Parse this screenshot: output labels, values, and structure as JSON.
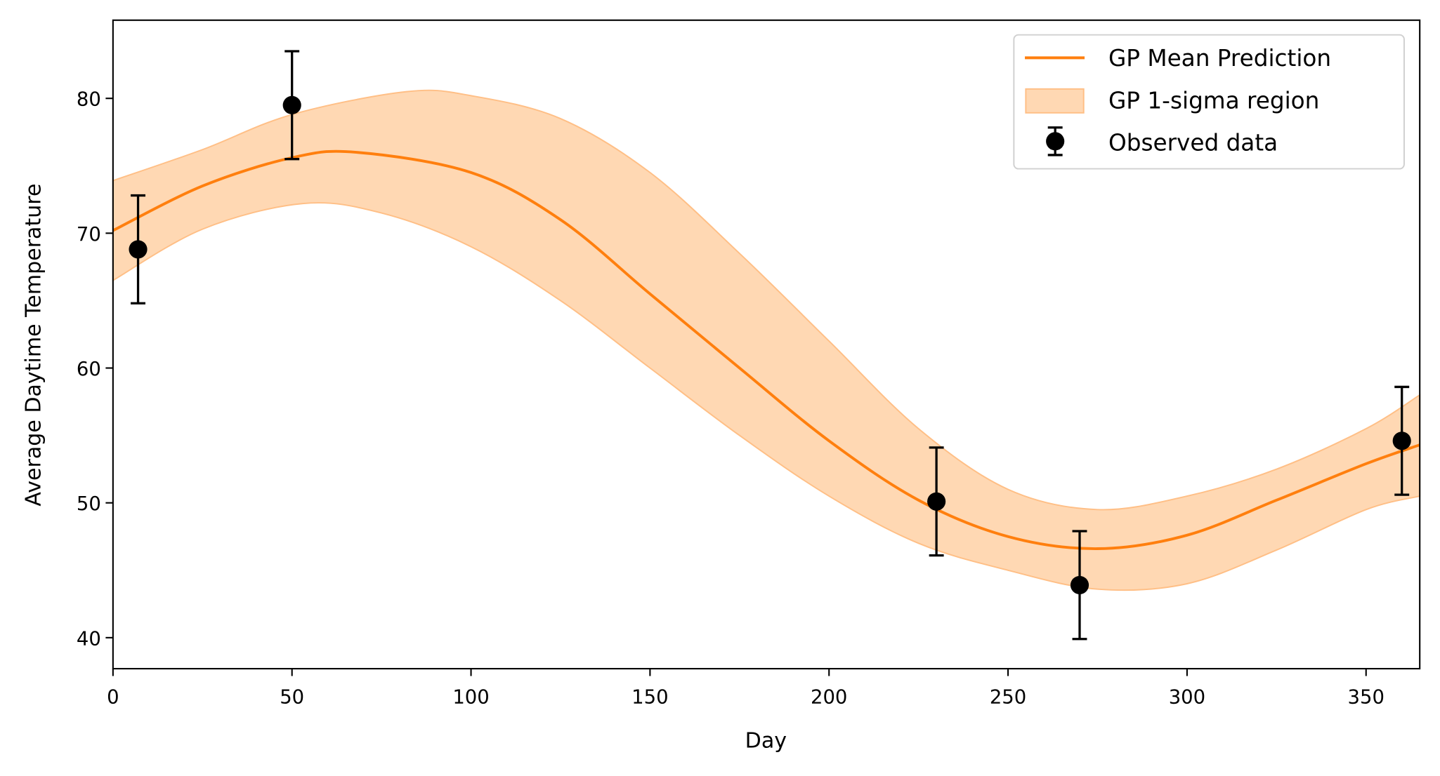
{
  "chart_data": {
    "type": "line",
    "title": "",
    "xlabel": "Day",
    "ylabel": "Average Daytime Temperature",
    "xlim": [
      0,
      365
    ],
    "ylim": [
      37.7,
      85.8
    ],
    "xticks": [
      0,
      50,
      100,
      150,
      200,
      250,
      300,
      350
    ],
    "yticks": [
      40,
      50,
      60,
      70,
      80
    ],
    "grid": false,
    "legend_position": "top-right",
    "colors": {
      "mean": "#ff7f0e",
      "band_fill": "#ffd8b3",
      "band_edge": "#ffbf86",
      "observed": "#000000"
    },
    "mean": {
      "name": "GP Mean Prediction",
      "x": [
        0,
        25,
        50,
        68,
        100,
        125,
        150,
        175,
        200,
        225,
        250,
        275,
        300,
        325,
        350,
        365
      ],
      "y": [
        70.2,
        73.5,
        75.6,
        76.0,
        74.5,
        71.0,
        65.5,
        60.0,
        54.6,
        50.2,
        47.5,
        46.6,
        47.6,
        50.2,
        52.9,
        54.3
      ]
    },
    "band": {
      "name": "GP 1-sigma region",
      "x": [
        0,
        25,
        50,
        82,
        100,
        125,
        150,
        175,
        200,
        225,
        250,
        275,
        300,
        325,
        350,
        365
      ],
      "upper": [
        73.9,
        76.2,
        78.8,
        80.5,
        80.2,
        78.5,
        74.5,
        68.5,
        62.0,
        55.5,
        51.0,
        49.5,
        50.5,
        52.5,
        55.5,
        58.0
      ],
      "x_lower": [
        0,
        25,
        53,
        75,
        100,
        125,
        150,
        175,
        200,
        225,
        250,
        275,
        300,
        325,
        350,
        365
      ],
      "lower": [
        66.5,
        70.3,
        72.2,
        71.5,
        69.0,
        65.0,
        60.0,
        55.0,
        50.5,
        47.0,
        45.0,
        43.6,
        44.0,
        46.5,
        49.5,
        50.5
      ]
    },
    "observed": {
      "name": "Observed data",
      "x": [
        7,
        50,
        230,
        270,
        360
      ],
      "y": [
        68.8,
        79.5,
        50.1,
        43.9,
        54.6
      ],
      "yerr": [
        4,
        4,
        4,
        4,
        4
      ]
    }
  }
}
